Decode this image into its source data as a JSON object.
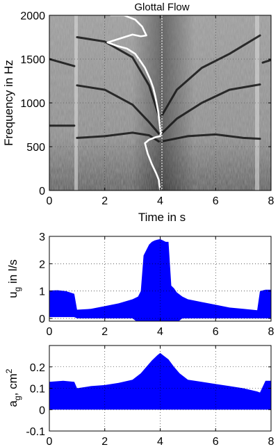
{
  "chart_data": [
    {
      "type": "spectrogram",
      "title": "Glottal Flow",
      "xlabel": "Time in s",
      "ylabel": "Frequency in Hz",
      "xlim": [
        0,
        8
      ],
      "ylim": [
        0,
        2000
      ],
      "xticks": [
        "0",
        "2",
        "4",
        "6",
        "8"
      ],
      "yticks": [
        "0",
        "500",
        "1000",
        "1500",
        "2000"
      ],
      "colormap": "gray",
      "overlay_line_color": "#ffffff",
      "formant_tracks": [
        {
          "x": [
            0.0,
            0.9
          ],
          "y": [
            740,
            740
          ]
        },
        {
          "x": [
            1.0,
            2.0,
            3.0,
            3.6,
            3.95
          ],
          "y": [
            600,
            620,
            660,
            630,
            560
          ]
        },
        {
          "x": [
            4.05,
            5.0,
            6.0,
            7.0,
            7.6
          ],
          "y": [
            560,
            620,
            640,
            600,
            590
          ]
        },
        {
          "x": [
            1.0,
            2.0,
            3.0,
            3.6,
            3.95
          ],
          "y": [
            1200,
            1150,
            980,
            780,
            650
          ]
        },
        {
          "x": [
            4.05,
            4.6,
            5.5,
            6.5,
            7.6
          ],
          "y": [
            650,
            820,
            1000,
            1150,
            1210
          ]
        },
        {
          "x": [
            1.0,
            2.0,
            3.0,
            3.6,
            3.95
          ],
          "y": [
            1750,
            1700,
            1520,
            1200,
            850
          ]
        },
        {
          "x": [
            4.05,
            4.6,
            5.5,
            6.5,
            7.6
          ],
          "y": [
            850,
            1150,
            1400,
            1560,
            1770
          ]
        },
        {
          "x": [
            0.0,
            0.9
          ],
          "y": [
            1500,
            1420
          ]
        },
        {
          "x": [
            7.7,
            8.0
          ],
          "y": [
            1460,
            1490
          ]
        }
      ],
      "overlay": {
        "x": [
          4.0,
          3.97,
          3.95,
          3.85,
          3.7,
          3.55,
          3.45,
          3.6,
          3.85,
          4.0,
          4.02,
          3.98,
          3.93,
          3.87,
          3.82,
          3.75,
          3.65,
          3.55,
          3.45,
          3.3,
          3.1,
          2.8,
          2.45,
          2.1,
          2.6,
          3.0,
          3.3,
          3.5,
          3.35,
          3.1,
          2.7,
          2.2
        ],
        "y": [
          0,
          60,
          120,
          200,
          300,
          420,
          540,
          580,
          610,
          620,
          650,
          760,
          900,
          1000,
          1080,
          1170,
          1260,
          1330,
          1400,
          1470,
          1560,
          1620,
          1650,
          1690,
          1740,
          1780,
          1760,
          1770,
          1870,
          1950,
          2000,
          2000
        ]
      }
    },
    {
      "type": "area",
      "xlabel": "",
      "ylabel": "u_g in l/s",
      "ylabel_main": "u",
      "ylabel_sub": "g",
      "ylabel_rest": " in l/s",
      "xlim": [
        0,
        8
      ],
      "ylim": [
        -0.1,
        3
      ],
      "xticks": [
        "0",
        "2",
        "4",
        "6",
        "8"
      ],
      "yticks": [
        "0",
        "1",
        "2",
        "3"
      ],
      "color": "#0000ff",
      "series": [
        {
          "x": [
            0.0,
            0.3,
            0.6,
            0.9,
            1.0,
            1.5,
            2.0,
            2.5,
            3.0,
            3.2,
            3.3,
            3.4,
            3.5,
            3.6,
            3.7,
            3.8,
            3.9,
            4.0,
            4.1,
            4.2,
            4.3,
            4.4,
            4.5,
            4.6,
            4.8,
            5.0,
            5.5,
            6.0,
            6.5,
            7.0,
            7.5,
            7.6,
            7.8,
            8.0
          ],
          "upper": [
            1.02,
            1.03,
            1.0,
            0.9,
            0.32,
            0.35,
            0.45,
            0.55,
            0.7,
            0.8,
            1.0,
            2.3,
            2.5,
            2.7,
            2.8,
            2.85,
            2.88,
            2.9,
            2.85,
            2.8,
            2.8,
            1.2,
            1.1,
            0.95,
            0.8,
            0.7,
            0.6,
            0.5,
            0.4,
            0.35,
            0.3,
            1.0,
            1.05,
            1.05
          ],
          "lower": [
            0.05,
            0.05,
            0.05,
            0.05,
            0.0,
            0.0,
            0.0,
            0.0,
            0.0,
            -0.15,
            -0.15,
            -0.15,
            -0.15,
            -0.15,
            -0.15,
            -0.15,
            -0.15,
            -0.15,
            -0.15,
            -0.15,
            -0.15,
            -0.15,
            -0.15,
            -0.15,
            0.0,
            0.0,
            0.0,
            0.0,
            0.0,
            0.0,
            0.0,
            0.0,
            0.0,
            0.0
          ]
        }
      ]
    },
    {
      "type": "area",
      "xlabel": "",
      "ylabel": "a_g, cm^2",
      "ylabel_main": "a",
      "ylabel_sub": "g",
      "ylabel_rest": ", cm",
      "ylabel_sup": "2",
      "xlim": [
        0,
        8
      ],
      "ylim": [
        -0.1,
        0.3
      ],
      "xticks": [
        "0",
        "2",
        "4",
        "6",
        "8"
      ],
      "yticks": [
        "-0.1",
        "0",
        "0.1",
        "0.2"
      ],
      "color": "#0000ff",
      "series": [
        {
          "x": [
            0.0,
            0.5,
            0.9,
            1.0,
            1.5,
            2.0,
            2.5,
            3.0,
            3.3,
            3.5,
            3.7,
            3.9,
            4.0,
            4.1,
            4.3,
            4.5,
            4.7,
            5.0,
            5.5,
            6.0,
            6.5,
            7.0,
            7.5,
            7.6,
            7.8,
            8.0
          ],
          "upper": [
            0.13,
            0.135,
            0.13,
            0.1,
            0.11,
            0.115,
            0.125,
            0.14,
            0.17,
            0.2,
            0.23,
            0.255,
            0.265,
            0.255,
            0.235,
            0.2,
            0.17,
            0.14,
            0.13,
            0.12,
            0.11,
            0.1,
            0.085,
            0.08,
            0.135,
            0.135
          ],
          "lower": [
            0,
            0,
            0,
            0,
            0,
            0,
            0,
            0,
            0,
            0,
            0,
            0,
            0,
            0,
            0,
            0,
            0,
            0,
            0,
            0,
            0,
            0,
            0,
            0,
            0,
            0
          ]
        }
      ]
    }
  ]
}
